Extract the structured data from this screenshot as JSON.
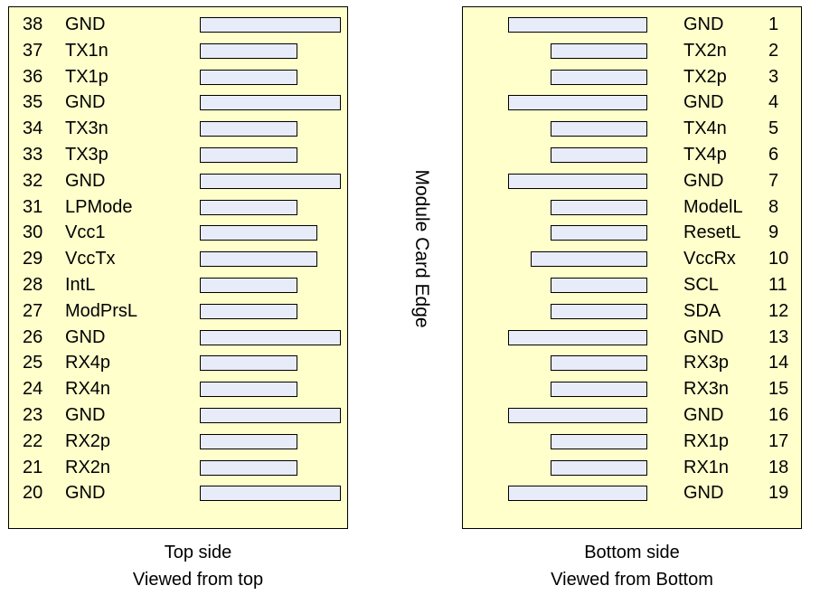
{
  "top_side": {
    "pins": [
      {
        "num": "38",
        "signal": "GND",
        "length": "long"
      },
      {
        "num": "37",
        "signal": "TX1n",
        "length": "short"
      },
      {
        "num": "36",
        "signal": "TX1p",
        "length": "short"
      },
      {
        "num": "35",
        "signal": "GND",
        "length": "long"
      },
      {
        "num": "34",
        "signal": "TX3n",
        "length": "short"
      },
      {
        "num": "33",
        "signal": "TX3p",
        "length": "short"
      },
      {
        "num": "32",
        "signal": "GND",
        "length": "long"
      },
      {
        "num": "31",
        "signal": "LPMode",
        "length": "short"
      },
      {
        "num": "30",
        "signal": "Vcc1",
        "length": "medium"
      },
      {
        "num": "29",
        "signal": "VccTx",
        "length": "medium"
      },
      {
        "num": "28",
        "signal": "IntL",
        "length": "short"
      },
      {
        "num": "27",
        "signal": "ModPrsL",
        "length": "short"
      },
      {
        "num": "26",
        "signal": "GND",
        "length": "long"
      },
      {
        "num": "25",
        "signal": "RX4p",
        "length": "short"
      },
      {
        "num": "24",
        "signal": "RX4n",
        "length": "short"
      },
      {
        "num": "23",
        "signal": "GND",
        "length": "long"
      },
      {
        "num": "22",
        "signal": "RX2p",
        "length": "short"
      },
      {
        "num": "21",
        "signal": "RX2n",
        "length": "short"
      },
      {
        "num": "20",
        "signal": "GND",
        "length": "long"
      }
    ],
    "caption_line1": "Top side",
    "caption_line2": "Viewed from top"
  },
  "bottom_side": {
    "pins": [
      {
        "num": "1",
        "signal": "GND",
        "length": "long"
      },
      {
        "num": "2",
        "signal": "TX2n",
        "length": "short"
      },
      {
        "num": "3",
        "signal": "TX2p",
        "length": "short"
      },
      {
        "num": "4",
        "signal": "GND",
        "length": "long"
      },
      {
        "num": "5",
        "signal": "TX4n",
        "length": "short"
      },
      {
        "num": "6",
        "signal": "TX4p",
        "length": "short"
      },
      {
        "num": "7",
        "signal": "GND",
        "length": "long"
      },
      {
        "num": "8",
        "signal": "ModelL",
        "length": "short"
      },
      {
        "num": "9",
        "signal": "ResetL",
        "length": "short"
      },
      {
        "num": "10",
        "signal": "VccRx",
        "length": "medium"
      },
      {
        "num": "11",
        "signal": "SCL",
        "length": "short"
      },
      {
        "num": "12",
        "signal": "SDA",
        "length": "short"
      },
      {
        "num": "13",
        "signal": "GND",
        "length": "long"
      },
      {
        "num": "14",
        "signal": "RX3p",
        "length": "short"
      },
      {
        "num": "15",
        "signal": "RX3n",
        "length": "short"
      },
      {
        "num": "16",
        "signal": "GND",
        "length": "long"
      },
      {
        "num": "17",
        "signal": "RX1p",
        "length": "short"
      },
      {
        "num": "18",
        "signal": "RX1n",
        "length": "short"
      },
      {
        "num": "19",
        "signal": "GND",
        "length": "long"
      }
    ],
    "caption_line1": "Bottom side",
    "caption_line2": "Viewed from Bottom"
  },
  "edge_label": "Module Card Edge",
  "colors": {
    "panel_fill": "#ffffcc",
    "pad_fill": "#e8ecf8",
    "outline": "#000000"
  }
}
